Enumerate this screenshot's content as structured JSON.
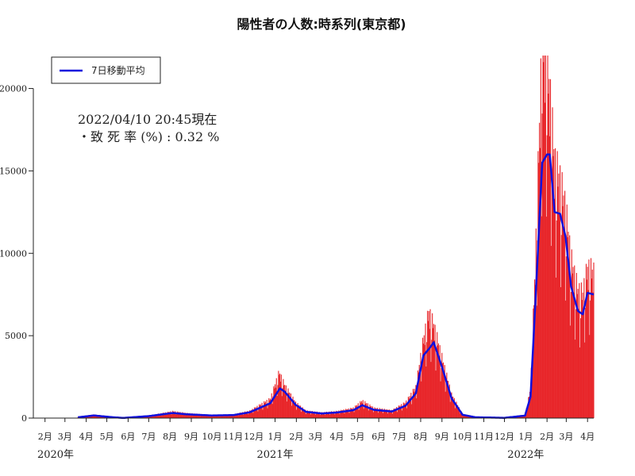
{
  "chart_data": {
    "type": "bar",
    "title": "陽性者の人数:時系列(東京都)",
    "note_line1": "2022/04/10 20:45現在",
    "note_line2": "・致 死 率 (%) : 0.32 %",
    "ylim": [
      0,
      22000
    ],
    "yticks": [
      0,
      5000,
      10000,
      15000,
      20000
    ],
    "ytick_labels": [
      "0",
      "5000",
      "10000",
      "15000",
      "20000"
    ],
    "xrange": [
      "2020-01-15",
      "2022-04-10"
    ],
    "x_month_labels": [
      "2月",
      "3月",
      "4月",
      "5月",
      "6月",
      "7月",
      "8月",
      "9月",
      "10月",
      "11月",
      "12月",
      "1月",
      "2月",
      "3月",
      "4月",
      "5月",
      "6月",
      "7月",
      "8月",
      "9月",
      "10月",
      "11月",
      "12月",
      "1月",
      "2月",
      "3月",
      "4月"
    ],
    "x_month_dates": [
      "2020-02-01",
      "2020-03-01",
      "2020-04-01",
      "2020-05-01",
      "2020-06-01",
      "2020-07-01",
      "2020-08-01",
      "2020-09-01",
      "2020-10-01",
      "2020-11-01",
      "2020-12-01",
      "2021-01-01",
      "2021-02-01",
      "2021-03-01",
      "2021-04-01",
      "2021-05-01",
      "2021-06-01",
      "2021-07-01",
      "2021-08-01",
      "2021-09-01",
      "2021-10-01",
      "2021-11-01",
      "2021-12-01",
      "2022-01-01",
      "2022-02-01",
      "2022-03-01",
      "2022-04-01"
    ],
    "x_year_labels": [
      "2020年",
      "2021年",
      "2022年"
    ],
    "x_year_dates": [
      "2020-01-01",
      "2021-01-01",
      "2022-01-01"
    ],
    "legend": {
      "label": "7日移動平均",
      "position": "top-left"
    },
    "colors": {
      "bars": "#e8262a",
      "line": "#1010dd",
      "axis": "#222222"
    },
    "series": [
      {
        "type": "line",
        "x": [
          "2020-03-20",
          "2020-04-12",
          "2020-05-10",
          "2020-05-25",
          "2020-07-01",
          "2020-08-05",
          "2020-08-25",
          "2020-09-30",
          "2020-11-01",
          "2020-11-25",
          "2020-12-25",
          "2021-01-08",
          "2021-01-15",
          "2021-01-31",
          "2021-02-15",
          "2021-03-10",
          "2021-04-01",
          "2021-04-25",
          "2021-05-08",
          "2021-05-25",
          "2021-06-20",
          "2021-07-10",
          "2021-07-25",
          "2021-08-05",
          "2021-08-15",
          "2021-08-20",
          "2021-09-01",
          "2021-09-15",
          "2021-10-01",
          "2021-10-20",
          "2021-12-01",
          "2021-12-31",
          "2022-01-08",
          "2022-01-15",
          "2022-01-25",
          "2022-02-01",
          "2022-02-05",
          "2022-02-12",
          "2022-02-20",
          "2022-02-28",
          "2022-03-08",
          "2022-03-18",
          "2022-03-25",
          "2022-04-01",
          "2022-04-10"
        ],
        "y": [
          50,
          160,
          50,
          10,
          120,
          310,
          230,
          160,
          180,
          350,
          900,
          1800,
          1600,
          800,
          380,
          280,
          340,
          480,
          780,
          500,
          400,
          750,
          1500,
          3800,
          4300,
          4600,
          3100,
          1200,
          200,
          50,
          15,
          150,
          1300,
          7000,
          15500,
          16000,
          16000,
          12500,
          12400,
          11000,
          8000,
          6500,
          6300,
          7600,
          7500
        ]
      },
      {
        "type": "bar",
        "x": [
          "2020-03-20",
          "2020-04-12",
          "2020-05-10",
          "2020-05-25",
          "2020-07-01",
          "2020-08-05",
          "2020-08-25",
          "2020-09-30",
          "2020-11-01",
          "2020-11-25",
          "2020-12-25",
          "2021-01-07",
          "2021-01-15",
          "2021-01-31",
          "2021-02-15",
          "2021-03-10",
          "2021-04-01",
          "2021-04-25",
          "2021-05-08",
          "2021-05-25",
          "2021-06-20",
          "2021-07-10",
          "2021-07-25",
          "2021-08-05",
          "2021-08-13",
          "2021-08-20",
          "2021-09-01",
          "2021-09-15",
          "2021-10-01",
          "2021-10-20",
          "2021-12-01",
          "2021-12-31",
          "2022-01-08",
          "2022-01-15",
          "2022-01-25",
          "2022-02-01",
          "2022-02-05",
          "2022-02-12",
          "2022-02-20",
          "2022-02-28",
          "2022-03-08",
          "2022-03-18",
          "2022-03-25",
          "2022-04-01",
          "2022-04-10"
        ],
        "y": [
          50,
          190,
          50,
          10,
          130,
          370,
          270,
          170,
          200,
          390,
          1050,
          2500,
          1800,
          850,
          400,
          300,
          370,
          550,
          950,
          550,
          420,
          850,
          1700,
          4300,
          5800,
          5100,
          3300,
          1300,
          220,
          50,
          15,
          160,
          1600,
          8500,
          21000,
          19500,
          18000,
          14000,
          13000,
          11500,
          8700,
          7000,
          6800,
          8200,
          8000
        ]
      }
    ]
  }
}
